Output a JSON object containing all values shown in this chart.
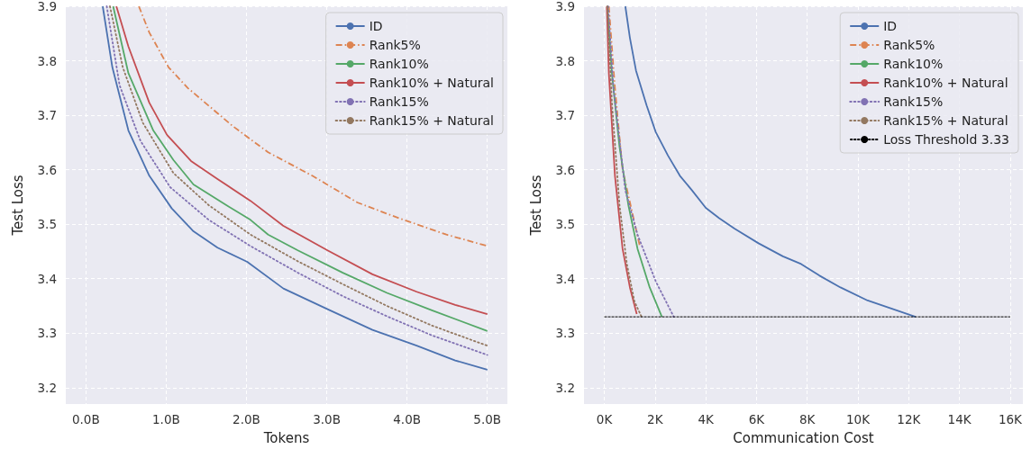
{
  "chart_data": [
    {
      "type": "line",
      "xlabel": "Tokens",
      "ylabel": "Test Loss",
      "xlim": [
        -0.25,
        5.25
      ],
      "ylim": [
        3.17,
        3.9
      ],
      "xticks": [
        {
          "value": 0,
          "label": "0.0B"
        },
        {
          "value": 1,
          "label": "1.0B"
        },
        {
          "value": 2,
          "label": "2.0B"
        },
        {
          "value": 3,
          "label": "3.0B"
        },
        {
          "value": 4,
          "label": "4.0B"
        },
        {
          "value": 5,
          "label": "5.0B"
        }
      ],
      "yticks": [
        3.2,
        3.3,
        3.4,
        3.5,
        3.6,
        3.7,
        3.8,
        3.9
      ],
      "grid": true,
      "legend": "top right",
      "series": [
        {
          "name": "ID",
          "color": "#4c72b0",
          "line_style": "solid",
          "x": [
            0.21,
            0.33,
            0.53,
            0.79,
            1.07,
            1.34,
            1.64,
            2.01,
            2.46,
            3.01,
            3.57,
            4.12,
            4.6,
            5.0
          ],
          "values": [
            3.9,
            3.788,
            3.672,
            3.589,
            3.529,
            3.487,
            3.457,
            3.431,
            3.382,
            3.344,
            3.306,
            3.277,
            3.25,
            3.233
          ]
        },
        {
          "name": "Rank5%",
          "color": "#dd8452",
          "line_style": "dashdot",
          "x": [
            0.66,
            0.79,
            1.03,
            1.27,
            1.83,
            2.27,
            2.82,
            3.38,
            3.9,
            4.49,
            5.0
          ],
          "values": [
            3.9,
            3.852,
            3.788,
            3.75,
            3.68,
            3.632,
            3.589,
            3.54,
            3.511,
            3.481,
            3.46
          ]
        },
        {
          "name": "Rank10%",
          "color": "#55a868",
          "line_style": "solid",
          "x": [
            0.34,
            0.53,
            0.84,
            1.09,
            1.34,
            1.75,
            2.05,
            2.27,
            2.64,
            3.2,
            3.75,
            4.31,
            5.0
          ],
          "values": [
            3.9,
            3.777,
            3.672,
            3.618,
            3.573,
            3.535,
            3.508,
            3.481,
            3.452,
            3.411,
            3.374,
            3.342,
            3.304
          ]
        },
        {
          "name": "Rank10% + Natural",
          "color": "#c44e52",
          "line_style": "solid",
          "x": [
            0.38,
            0.53,
            0.79,
            1.01,
            1.31,
            1.64,
            2.05,
            2.46,
            3.01,
            3.57,
            4.12,
            4.6,
            5.0
          ],
          "values": [
            3.9,
            3.826,
            3.723,
            3.664,
            3.616,
            3.583,
            3.543,
            3.497,
            3.452,
            3.408,
            3.376,
            3.352,
            3.335
          ]
        },
        {
          "name": "Rank15%",
          "color": "#8172b3",
          "line_style": "dotted",
          "x": [
            0.26,
            0.42,
            0.68,
            1.05,
            1.53,
            2.05,
            2.64,
            3.2,
            3.75,
            4.31,
            5.0
          ],
          "values": [
            3.9,
            3.755,
            3.653,
            3.568,
            3.508,
            3.46,
            3.411,
            3.368,
            3.331,
            3.296,
            3.26
          ]
        },
        {
          "name": "Rank15% + Natural",
          "color": "#937860",
          "line_style": "dotted",
          "x": [
            0.3,
            0.46,
            0.71,
            1.09,
            1.53,
            2.05,
            2.64,
            3.2,
            3.75,
            4.31,
            5.0
          ],
          "values": [
            3.9,
            3.788,
            3.686,
            3.594,
            3.535,
            3.481,
            3.432,
            3.39,
            3.35,
            3.314,
            3.277
          ]
        }
      ]
    },
    {
      "type": "line",
      "xlabel": "Communication Cost",
      "ylabel": "Test Loss",
      "xlim": [
        -0.8,
        16.5
      ],
      "ylim": [
        3.17,
        3.9
      ],
      "xticks": [
        {
          "value": 0,
          "label": "0K"
        },
        {
          "value": 2,
          "label": "2K"
        },
        {
          "value": 4,
          "label": "4K"
        },
        {
          "value": 6,
          "label": "6K"
        },
        {
          "value": 8,
          "label": "8K"
        },
        {
          "value": 10,
          "label": "10K"
        },
        {
          "value": 12,
          "label": "12K"
        },
        {
          "value": 14,
          "label": "14K"
        },
        {
          "value": 16,
          "label": "16K"
        }
      ],
      "yticks": [
        3.2,
        3.3,
        3.4,
        3.5,
        3.6,
        3.7,
        3.8,
        3.9
      ],
      "grid": true,
      "legend": "top right",
      "series": [
        {
          "name": "ID",
          "color": "#4c72b0",
          "line_style": "solid",
          "x": [
            0.83,
            1.01,
            1.25,
            1.67,
            2.03,
            2.51,
            2.98,
            3.46,
            4.0,
            4.53,
            5.13,
            6.08,
            7.04,
            7.76,
            8.47,
            9.31,
            10.38,
            11.21,
            12.27
          ],
          "values": [
            3.9,
            3.842,
            3.782,
            3.718,
            3.669,
            3.626,
            3.589,
            3.562,
            3.53,
            3.511,
            3.492,
            3.465,
            3.441,
            3.427,
            3.406,
            3.384,
            3.36,
            3.347,
            3.33
          ]
        },
        {
          "name": "Rank5%",
          "color": "#dd8452",
          "line_style": "dashdot",
          "x": [
            0.18,
            0.42,
            0.72,
            1.4
          ],
          "values": [
            3.9,
            3.75,
            3.6,
            3.46
          ]
        },
        {
          "name": "Rank10%",
          "color": "#55a868",
          "line_style": "solid",
          "x": [
            0.12,
            0.3,
            0.6,
            0.95,
            1.31,
            1.79,
            2.27
          ],
          "values": [
            3.9,
            3.777,
            3.642,
            3.535,
            3.455,
            3.384,
            3.33
          ]
        },
        {
          "name": "Rank10% + Natural",
          "color": "#c44e52",
          "line_style": "solid",
          "x": [
            0.1,
            0.18,
            0.42,
            0.72,
            1.01,
            1.28
          ],
          "values": [
            3.9,
            3.777,
            3.589,
            3.455,
            3.384,
            3.335
          ]
        },
        {
          "name": "Rank15%",
          "color": "#8172b3",
          "line_style": "dotted",
          "x": [
            0.15,
            0.36,
            0.83,
            1.31,
            2.03,
            2.74
          ],
          "values": [
            3.9,
            3.75,
            3.562,
            3.481,
            3.395,
            3.33
          ]
        },
        {
          "name": "Rank15% + Natural",
          "color": "#937860",
          "line_style": "dotted",
          "x": [
            0.12,
            0.3,
            0.6,
            0.89,
            1.19,
            1.47
          ],
          "values": [
            3.9,
            3.723,
            3.535,
            3.427,
            3.358,
            3.33
          ]
        },
        {
          "name": "Loss Threshold 3.33",
          "color": "#000000",
          "line_style": "dashed",
          "x": [
            0,
            16
          ],
          "values": [
            3.33,
            3.33
          ]
        }
      ]
    }
  ]
}
